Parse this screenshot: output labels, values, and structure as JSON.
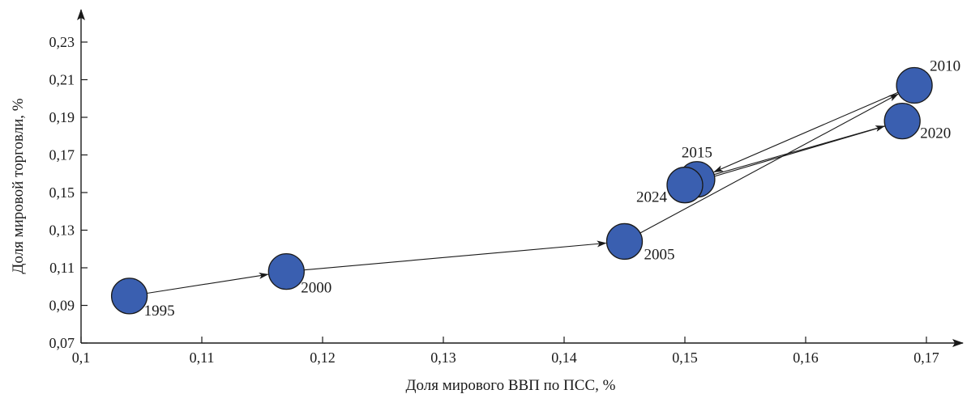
{
  "chart_data": {
    "type": "scatter",
    "xlabel": "Доля мирового ВВП по ПСС, %",
    "ylabel": "Доля мировой торговли, %",
    "xlim": [
      0.1,
      0.17
    ],
    "ylim": [
      0.07,
      0.23
    ],
    "x_ticks": [
      "0,1",
      "0,11",
      "0,12",
      "0,13",
      "0,14",
      "0,15",
      "0,16",
      "0,17"
    ],
    "y_ticks": [
      "0,07",
      "0,09",
      "0,11",
      "0,13",
      "0,15",
      "0,17",
      "0,19",
      "0,21",
      "0,23"
    ],
    "x_tick_values": [
      0.1,
      0.11,
      0.12,
      0.13,
      0.14,
      0.15,
      0.16,
      0.17
    ],
    "y_tick_values": [
      0.07,
      0.09,
      0.11,
      0.13,
      0.15,
      0.17,
      0.19,
      0.21,
      0.23
    ],
    "grid": false,
    "connected_path": true,
    "marker_color": "#3a5fb0",
    "points": [
      {
        "label": "1995",
        "x": 0.104,
        "y": 0.095
      },
      {
        "label": "2000",
        "x": 0.117,
        "y": 0.108
      },
      {
        "label": "2005",
        "x": 0.145,
        "y": 0.124
      },
      {
        "label": "2010",
        "x": 0.169,
        "y": 0.207
      },
      {
        "label": "2015",
        "x": 0.151,
        "y": 0.157
      },
      {
        "label": "2020",
        "x": 0.168,
        "y": 0.188
      },
      {
        "label": "2024",
        "x": 0.15,
        "y": 0.154
      }
    ]
  }
}
